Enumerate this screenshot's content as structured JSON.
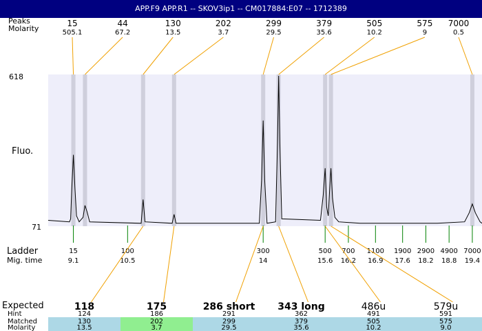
{
  "header": {
    "title": "APP.F9  APP.R1 -- SKOV3ip1 -- CM017884:E07 -- 1712389"
  },
  "labels": {
    "peaks": "Peaks",
    "molarity": "Molarity",
    "fluo": "Fluo.",
    "ladder": "Ladder",
    "mig_time": "Mig. time",
    "expected": "Expected",
    "hint": "Hint",
    "matched": "Matched",
    "molarity_row": "Molarity"
  },
  "colors": {
    "plot_bg": "#eeeefa",
    "band": "#cfcfdc",
    "connector": "#f0a000",
    "ladder_tick": "#008000",
    "row_blue": "#add8e6",
    "row_green": "#90ee90"
  },
  "chart_data": {
    "type": "line",
    "y_axis": {
      "min_label": "71",
      "max_label": "618",
      "label": "Fluo."
    },
    "x_axis": {
      "label": "Mig. time",
      "range": [
        9.1,
        19.4
      ]
    },
    "peaks": [
      {
        "size": "15",
        "molarity": "505.1",
        "mig_time": 9.1
      },
      {
        "size": "44",
        "molarity": "67.2",
        "mig_time": 9.4
      },
      {
        "size": "130",
        "molarity": "13.5",
        "mig_time": 10.9
      },
      {
        "size": "202",
        "molarity": "3.7",
        "mig_time": 11.7
      },
      {
        "size": "299",
        "molarity": "29.5",
        "mig_time": 14.0
      },
      {
        "size": "379",
        "molarity": "35.6",
        "mig_time": 14.4
      },
      {
        "size": "505",
        "molarity": "10.2",
        "mig_time": 15.6
      },
      {
        "size": "575",
        "molarity": "9",
        "mig_time": 15.75
      },
      {
        "size": "7000",
        "molarity": "0.5",
        "mig_time": 19.4
      }
    ],
    "ladder": [
      {
        "size": "15",
        "mig_time": "9.1",
        "t": 9.1
      },
      {
        "size": "100",
        "mig_time": "10.5",
        "t": 10.5
      },
      {
        "size": "300",
        "mig_time": "14",
        "t": 14.0
      },
      {
        "size": "500",
        "mig_time": "15.6",
        "t": 15.6
      },
      {
        "size": "700",
        "mig_time": "16.2",
        "t": 16.2
      },
      {
        "size": "1100",
        "mig_time": "16.9",
        "t": 16.9
      },
      {
        "size": "1900",
        "mig_time": "17.6",
        "t": 17.6
      },
      {
        "size": "2900",
        "mig_time": "18.2",
        "t": 18.2
      },
      {
        "size": "4900",
        "mig_time": "18.8",
        "t": 18.8
      },
      {
        "size": "7000",
        "mig_time": "19.4",
        "t": 19.4
      }
    ],
    "trace": [
      [
        9.0,
        0.02
      ],
      [
        9.03,
        0.04
      ],
      [
        9.06,
        0.25
      ],
      [
        9.1,
        0.47
      ],
      [
        9.14,
        0.25
      ],
      [
        9.18,
        0.06
      ],
      [
        9.25,
        0.02
      ],
      [
        9.35,
        0.05
      ],
      [
        9.4,
        0.13
      ],
      [
        9.45,
        0.09
      ],
      [
        9.52,
        0.02
      ],
      [
        10.85,
        0.01
      ],
      [
        10.9,
        0.17
      ],
      [
        10.95,
        0.02
      ],
      [
        11.65,
        0.01
      ],
      [
        11.7,
        0.07
      ],
      [
        11.75,
        0.01
      ],
      [
        13.9,
        0.01
      ],
      [
        13.96,
        0.3
      ],
      [
        14.0,
        0.7
      ],
      [
        14.04,
        0.3
      ],
      [
        14.1,
        0.01
      ],
      [
        14.32,
        0.02
      ],
      [
        14.37,
        0.55
      ],
      [
        14.4,
        1.0
      ],
      [
        14.43,
        0.55
      ],
      [
        14.48,
        0.04
      ],
      [
        15.48,
        0.03
      ],
      [
        15.55,
        0.2
      ],
      [
        15.6,
        0.38
      ],
      [
        15.64,
        0.12
      ],
      [
        15.68,
        0.06
      ],
      [
        15.72,
        0.25
      ],
      [
        15.75,
        0.38
      ],
      [
        15.79,
        0.18
      ],
      [
        15.85,
        0.05
      ],
      [
        15.95,
        0.02
      ],
      [
        16.5,
        0.01
      ],
      [
        17.5,
        0.01
      ],
      [
        18.5,
        0.01
      ],
      [
        19.2,
        0.02
      ],
      [
        19.32,
        0.08
      ],
      [
        19.4,
        0.14
      ],
      [
        19.48,
        0.08
      ],
      [
        19.6,
        0.02
      ]
    ],
    "bands": [
      9.1,
      9.4,
      10.9,
      11.7,
      14.0,
      14.4,
      15.6,
      15.75,
      19.4
    ]
  },
  "summary": {
    "columns": [
      {
        "expected": "118",
        "hint": "124",
        "matched": "130",
        "molarity": "13.5",
        "state": "blue"
      },
      {
        "expected": "175",
        "hint": "186",
        "matched": "202",
        "molarity": "3.7",
        "state": "green"
      },
      {
        "expected": "286 short",
        "hint": "291",
        "matched": "299",
        "molarity": "29.5",
        "state": "blue"
      },
      {
        "expected": "343 long",
        "hint": "362",
        "matched": "379",
        "molarity": "35.6",
        "state": "blue"
      },
      {
        "expected": "486u",
        "hint": "491",
        "matched": "505",
        "molarity": "10.2",
        "state": "blue"
      },
      {
        "expected": "579u",
        "hint": "591",
        "matched": "575",
        "molarity": "9.0",
        "state": "blue"
      }
    ]
  }
}
